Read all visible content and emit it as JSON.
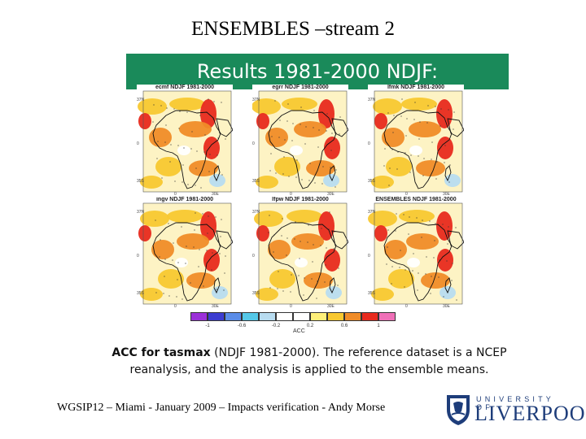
{
  "header": {
    "title": "ENSEMBLES –stream 2"
  },
  "banner": {
    "text": "Results 1981-2000 NDJF:"
  },
  "panels": [
    {
      "title": "ecmf NDJF 1981-2000"
    },
    {
      "title": "egrr NDJF 1981-2000"
    },
    {
      "title": "lfmk NDJF 1981-2000"
    },
    {
      "title": "ingv NDJF 1981-2000"
    },
    {
      "title": "lfpw NDJF 1981-2000"
    },
    {
      "title": "ENSEMBLES NDJF 1981-2000"
    }
  ],
  "axes": {
    "lat_labels": [
      "37N",
      "0",
      "35S"
    ],
    "lon_labels": [
      "0",
      "30E"
    ]
  },
  "colorbar": {
    "label": "ACC",
    "ticks": [
      "-1",
      "-0.6",
      "-0.2",
      "0.2",
      "0.6",
      "1"
    ],
    "colors": [
      "#9b30d8",
      "#3c3cd0",
      "#5a8ce8",
      "#55c8e8",
      "#b8dcf0",
      "#ffffff",
      "#ffffff",
      "#fff07a",
      "#f8c830",
      "#f08c28",
      "#e82a1e",
      "#f070b8"
    ]
  },
  "caption": {
    "bold": "ACC for tasmax",
    "rest_line1": " (NDJF 1981-2000). The reference dataset is a NCEP",
    "line2": "reanalysis, and the analysis is applied to the ensemble means."
  },
  "footer": {
    "text": "WGSIP12 – Miami - January 2009 – Impacts verification - Andy Morse"
  },
  "logo": {
    "top": "UNIVERSITY OF",
    "main": "LIVERPOOL"
  },
  "colors": {
    "banner": "#1a8a5a",
    "logo": "#1e3d7a",
    "positive": "#f08c28",
    "strong": "#e82a1e"
  }
}
